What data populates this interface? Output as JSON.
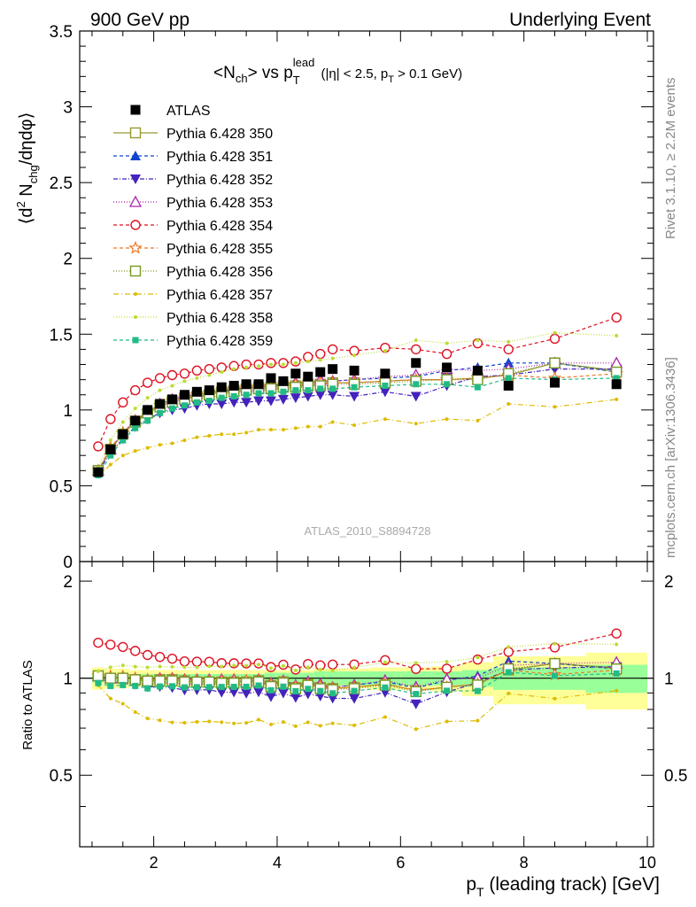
{
  "header": {
    "left": "900 GeV pp",
    "right": "Underlying Event"
  },
  "title_parts": {
    "a": "<N",
    "a_sub": "ch",
    "b": "> vs p",
    "b_sub": "T",
    "b_sup": "lead",
    "c": " (|η| < 2.5, p",
    "c_sub": "T",
    "d": " > 0.1 GeV)"
  },
  "ylabel_parts": {
    "a": "⟨d",
    "a_sup": "2",
    "b": " N",
    "b_sub": "chg",
    "c": "/dηdφ⟩"
  },
  "ratio_ylabel": "Ratio to ATLAS",
  "xlabel_parts": {
    "a": "p",
    "a_sub": "T",
    "b": " (leading track) [GeV]"
  },
  "analysis_id": "ATLAS_2010_S8894728",
  "side_text": {
    "top": "Rivet 3.1.10, ≥ 2.2M events",
    "bottom": "mcplots.cern.ch [arXiv:1306.3436]"
  },
  "colors": {
    "band_inner": "#99ff99",
    "band_outer": "#ffff99"
  },
  "chart_data": [
    {
      "type": "line",
      "panel": "main",
      "xlim": [
        0.8,
        10.1
      ],
      "ylim": [
        0,
        3.5
      ],
      "yticks": [
        0,
        0.5,
        1,
        1.5,
        2,
        2.5,
        3,
        3.5
      ],
      "ytick_labels": [
        "0",
        "0.5",
        "1",
        "1.5",
        "2",
        "2.5",
        "3",
        "3.5"
      ],
      "xticks": [
        2,
        4,
        6,
        8,
        10
      ],
      "x": [
        1.1,
        1.3,
        1.5,
        1.7,
        1.9,
        2.1,
        2.3,
        2.5,
        2.7,
        2.9,
        3.1,
        3.3,
        3.5,
        3.7,
        3.9,
        4.1,
        4.3,
        4.5,
        4.7,
        4.9,
        5.25,
        5.75,
        6.25,
        6.75,
        7.25,
        7.75,
        8.5,
        9.5
      ],
      "series": [
        {
          "name": "ATLAS",
          "color": "#000000",
          "marker": "sq-filled",
          "dash": "none",
          "values": [
            0.59,
            0.74,
            0.84,
            0.93,
            1.0,
            1.04,
            1.07,
            1.1,
            1.12,
            1.13,
            1.15,
            1.16,
            1.17,
            1.17,
            1.21,
            1.19,
            1.24,
            1.22,
            1.25,
            1.27,
            1.26,
            1.24,
            1.31,
            1.28,
            1.26,
            1.16,
            1.18,
            1.17
          ]
        },
        {
          "name": "Pythia 6.428 350",
          "color": "#999933",
          "marker": "sq-open",
          "dash": "solid",
          "values": [
            0.6,
            0.74,
            0.84,
            0.92,
            0.98,
            1.03,
            1.06,
            1.08,
            1.09,
            1.1,
            1.12,
            1.13,
            1.14,
            1.15,
            1.15,
            1.16,
            1.16,
            1.17,
            1.17,
            1.18,
            1.18,
            1.19,
            1.2,
            1.2,
            1.21,
            1.23,
            1.31,
            1.26
          ]
        },
        {
          "name": "Pythia 6.428 351",
          "color": "#1144cc",
          "marker": "tri-up",
          "dash": "4,3",
          "values": [
            0.6,
            0.75,
            0.85,
            0.93,
            0.99,
            1.04,
            1.07,
            1.09,
            1.1,
            1.11,
            1.13,
            1.13,
            1.15,
            1.15,
            1.16,
            1.17,
            1.18,
            1.18,
            1.19,
            1.19,
            1.2,
            1.21,
            1.22,
            1.26,
            1.28,
            1.31,
            1.31,
            1.25
          ]
        },
        {
          "name": "Pythia 6.428 352",
          "color": "#4422bb",
          "marker": "tri-down",
          "dash": "5,2,1,2",
          "values": [
            0.59,
            0.72,
            0.81,
            0.89,
            0.94,
            0.98,
            1.0,
            1.01,
            1.03,
            1.04,
            1.04,
            1.05,
            1.05,
            1.06,
            1.06,
            1.07,
            1.08,
            1.09,
            1.1,
            1.1,
            1.09,
            1.12,
            1.09,
            1.16,
            1.22,
            1.23,
            1.27,
            1.27
          ]
        },
        {
          "name": "Pythia 6.428 353",
          "color": "#aa22aa",
          "marker": "tri-up-open",
          "dash": "1,2",
          "values": [
            0.6,
            0.74,
            0.85,
            0.93,
            0.99,
            1.04,
            1.07,
            1.09,
            1.11,
            1.12,
            1.14,
            1.15,
            1.15,
            1.16,
            1.17,
            1.17,
            1.18,
            1.19,
            1.2,
            1.19,
            1.2,
            1.22,
            1.23,
            1.27,
            1.26,
            1.27,
            1.31,
            1.31
          ]
        },
        {
          "name": "Pythia 6.428 354",
          "color": "#dd1122",
          "marker": "circle-open",
          "dash": "4,3",
          "values": [
            0.76,
            0.94,
            1.05,
            1.13,
            1.18,
            1.21,
            1.23,
            1.24,
            1.26,
            1.27,
            1.28,
            1.29,
            1.3,
            1.3,
            1.31,
            1.31,
            1.32,
            1.35,
            1.37,
            1.4,
            1.39,
            1.41,
            1.4,
            1.37,
            1.44,
            1.4,
            1.47,
            1.61
          ]
        },
        {
          "name": "Pythia 6.428 355",
          "color": "#ee7722",
          "marker": "star-open",
          "dash": "4,3",
          "values": [
            0.6,
            0.75,
            0.85,
            0.93,
            0.99,
            1.03,
            1.06,
            1.08,
            1.1,
            1.11,
            1.13,
            1.14,
            1.15,
            1.15,
            1.16,
            1.16,
            1.17,
            1.17,
            1.18,
            1.18,
            1.18,
            1.19,
            1.2,
            1.2,
            1.21,
            1.23,
            1.21,
            1.24
          ]
        },
        {
          "name": "Pythia 6.428 356",
          "color": "#779922",
          "marker": "sq-open",
          "dash": "1,2",
          "values": [
            0.6,
            0.74,
            0.84,
            0.92,
            0.98,
            1.02,
            1.05,
            1.07,
            1.09,
            1.1,
            1.11,
            1.12,
            1.13,
            1.14,
            1.14,
            1.15,
            1.15,
            1.16,
            1.16,
            1.17,
            1.17,
            1.18,
            1.19,
            1.2,
            1.2,
            1.24,
            1.31,
            1.25
          ]
        },
        {
          "name": "Pythia 6.428 357",
          "color": "#ddbb00",
          "marker": "dot",
          "dash": "6,3,1,3",
          "values": [
            0.56,
            0.64,
            0.7,
            0.73,
            0.75,
            0.77,
            0.78,
            0.8,
            0.82,
            0.83,
            0.84,
            0.84,
            0.85,
            0.87,
            0.87,
            0.87,
            0.88,
            0.89,
            0.89,
            0.92,
            0.9,
            0.94,
            0.91,
            0.94,
            0.93,
            1.04,
            1.02,
            1.07
          ]
        },
        {
          "name": "Pythia 6.428 358",
          "color": "#bbdd33",
          "marker": "dot",
          "dash": "1,2",
          "values": [
            0.62,
            0.8,
            0.92,
            1.01,
            1.08,
            1.13,
            1.16,
            1.19,
            1.21,
            1.23,
            1.25,
            1.27,
            1.28,
            1.29,
            1.3,
            1.3,
            1.31,
            1.32,
            1.33,
            1.34,
            1.36,
            1.39,
            1.46,
            1.44,
            1.46,
            1.45,
            1.51,
            1.49
          ]
        },
        {
          "name": "Pythia 6.428 359",
          "color": "#22bb88",
          "marker": "sq-small",
          "dash": "4,3",
          "values": [
            0.57,
            0.7,
            0.8,
            0.88,
            0.93,
            0.98,
            1.01,
            1.03,
            1.05,
            1.06,
            1.08,
            1.09,
            1.1,
            1.11,
            1.11,
            1.12,
            1.13,
            1.13,
            1.14,
            1.14,
            1.15,
            1.16,
            1.17,
            1.17,
            1.15,
            1.21,
            1.2,
            1.21
          ]
        }
      ]
    },
    {
      "type": "line",
      "panel": "ratio",
      "ylabel": "Ratio to ATLAS",
      "ylim": [
        0.3,
        2.3
      ],
      "yticks": [
        0.5,
        1,
        2
      ],
      "ytick_labels": [
        "0.5",
        "1",
        "2"
      ],
      "band_note": "experimental uncertainty bands around 1",
      "band_x_edges": [
        1.0,
        1.2,
        1.4,
        1.6,
        1.8,
        2.0,
        2.2,
        2.4,
        2.6,
        2.8,
        3.0,
        3.2,
        3.4,
        3.6,
        3.8,
        4.0,
        4.2,
        4.4,
        4.6,
        4.8,
        5.0,
        5.5,
        6.0,
        6.5,
        7.0,
        7.5,
        8.0,
        9.0,
        10.0
      ],
      "band_inner_halfwidth": [
        0.03,
        0.03,
        0.03,
        0.03,
        0.03,
        0.03,
        0.03,
        0.03,
        0.03,
        0.03,
        0.03,
        0.03,
        0.03,
        0.03,
        0.04,
        0.04,
        0.04,
        0.04,
        0.05,
        0.05,
        0.05,
        0.05,
        0.05,
        0.05,
        0.06,
        0.08,
        0.08,
        0.1
      ],
      "band_outer_halfwidth": [
        0.08,
        0.07,
        0.07,
        0.06,
        0.06,
        0.06,
        0.06,
        0.06,
        0.06,
        0.06,
        0.06,
        0.06,
        0.06,
        0.06,
        0.06,
        0.06,
        0.06,
        0.06,
        0.07,
        0.07,
        0.07,
        0.08,
        0.08,
        0.09,
        0.12,
        0.17,
        0.17,
        0.2
      ]
    }
  ]
}
